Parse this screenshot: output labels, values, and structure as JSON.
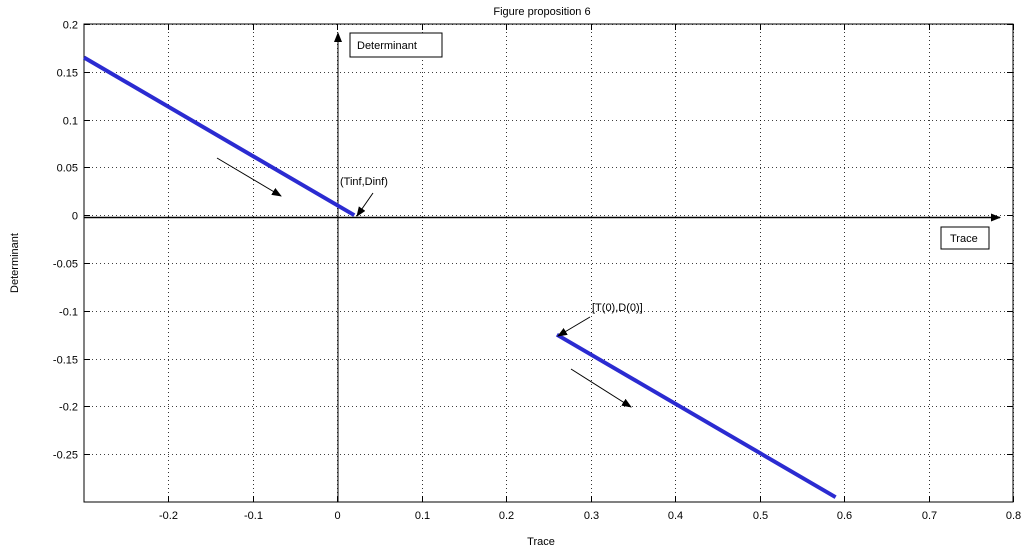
{
  "chart_data": {
    "type": "line",
    "title": "Figure proposition 6",
    "xlabel": "Trace",
    "ylabel": "Determinant",
    "xlim": [
      -0.3,
      0.8
    ],
    "ylim": [
      -0.3,
      0.2
    ],
    "xticks": [
      -0.2,
      -0.1,
      0,
      0.1,
      0.2,
      0.3,
      0.4,
      0.5,
      0.6,
      0.7,
      0.8
    ],
    "xtick_labels": [
      "-0.2",
      "-0.1",
      "0",
      "0.1",
      "0.2",
      "0.3",
      "0.4",
      "0.5",
      "0.6",
      "0.7",
      "0.8"
    ],
    "yticks": [
      0.2,
      0.15,
      0.1,
      0.05,
      0,
      -0.05,
      -0.1,
      -0.15,
      -0.2,
      -0.25
    ],
    "ytick_labels": [
      "0.2",
      "0.15",
      "0.1",
      "0.05",
      "0",
      "-0.05",
      "-0.1",
      "-0.15",
      "-0.2",
      "-0.25"
    ],
    "grid": true,
    "series": [
      {
        "color": "#2b2bd1",
        "x": [
          -0.3,
          0.02
        ],
        "y": [
          0.165,
          0.0
        ]
      },
      {
        "color": "#2b2bd1",
        "x": [
          0.26,
          0.59
        ],
        "y": [
          -0.125,
          -0.295
        ]
      }
    ],
    "annotations": {
      "determinant_box": "Determinant",
      "trace_box": "Trace",
      "inf_point_label": "(Tinf,Dinf)",
      "start_point_label": "[T(0),D(0)]"
    },
    "colors": {
      "line": "#2b2bd1",
      "axes": "#000000",
      "grid": "#000000"
    }
  }
}
